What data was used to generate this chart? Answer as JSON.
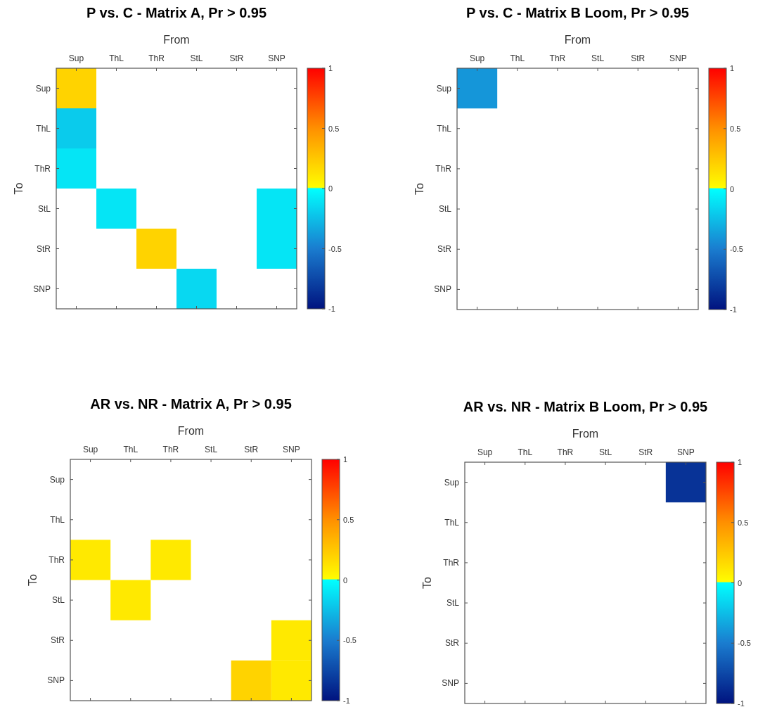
{
  "chart_data": [
    {
      "type": "heatmap",
      "title": "P vs. C - Matrix A, Pr > 0.95",
      "xlabel": "From",
      "ylabel": "To",
      "categories": [
        "Sup",
        "ThL",
        "ThR",
        "StL",
        "StR",
        "SNP"
      ],
      "y_categories": [
        "Sup",
        "ThL",
        "ThR",
        "StL",
        "StR",
        "SNP"
      ],
      "cells": [
        [
          0.2,
          null,
          null,
          null,
          null,
          null
        ],
        [
          -0.2,
          null,
          null,
          null,
          null,
          null
        ],
        [
          -0.1,
          null,
          null,
          null,
          null,
          null
        ],
        [
          null,
          -0.1,
          null,
          null,
          null,
          -0.1
        ],
        [
          null,
          null,
          0.2,
          null,
          null,
          -0.1
        ],
        [
          null,
          null,
          null,
          -0.15,
          null,
          null
        ]
      ],
      "clim": [
        -1,
        1
      ],
      "cticks": [
        -1,
        -0.5,
        0,
        0.5,
        1
      ]
    },
    {
      "type": "heatmap",
      "title": "P vs. C - Matrix B Loom, Pr > 0.95",
      "xlabel": "From",
      "ylabel": "To",
      "categories": [
        "Sup",
        "ThL",
        "ThR",
        "StL",
        "StR",
        "SNP"
      ],
      "y_categories": [
        "Sup",
        "ThL",
        "ThR",
        "StL",
        "StR",
        "SNP"
      ],
      "cells": [
        [
          -0.4,
          null,
          null,
          null,
          null,
          null
        ],
        [
          null,
          null,
          null,
          null,
          null,
          null
        ],
        [
          null,
          null,
          null,
          null,
          null,
          null
        ],
        [
          null,
          null,
          null,
          null,
          null,
          null
        ],
        [
          null,
          null,
          null,
          null,
          null,
          null
        ],
        [
          null,
          null,
          null,
          null,
          null,
          null
        ]
      ],
      "clim": [
        -1,
        1
      ],
      "cticks": [
        -1,
        -0.5,
        0,
        0.5,
        1
      ]
    },
    {
      "type": "heatmap",
      "title": "AR vs. NR - Matrix A, Pr > 0.95",
      "xlabel": "From",
      "ylabel": "To",
      "categories": [
        "Sup",
        "ThL",
        "ThR",
        "StL",
        "StR",
        "SNP"
      ],
      "y_categories": [
        "Sup",
        "ThL",
        "ThR",
        "StL",
        "StR",
        "SNP"
      ],
      "cells": [
        [
          null,
          null,
          null,
          null,
          null,
          null
        ],
        [
          null,
          null,
          null,
          null,
          null,
          null
        ],
        [
          0.1,
          null,
          0.1,
          null,
          null,
          null
        ],
        [
          null,
          0.1,
          null,
          null,
          null,
          null
        ],
        [
          null,
          null,
          null,
          null,
          null,
          0.1
        ],
        [
          null,
          null,
          null,
          null,
          0.2,
          0.1
        ]
      ],
      "clim": [
        -1,
        1
      ],
      "cticks": [
        -1,
        -0.5,
        0,
        0.5,
        1
      ]
    },
    {
      "type": "heatmap",
      "title": "AR vs. NR - Matrix B Loom, Pr > 0.95",
      "xlabel": "From",
      "ylabel": "To",
      "categories": [
        "Sup",
        "ThL",
        "ThR",
        "StL",
        "StR",
        "SNP"
      ],
      "y_categories": [
        "Sup",
        "ThL",
        "ThR",
        "StL",
        "StR",
        "SNP"
      ],
      "cells": [
        [
          null,
          null,
          null,
          null,
          null,
          -0.85
        ],
        [
          null,
          null,
          null,
          null,
          null,
          null
        ],
        [
          null,
          null,
          null,
          null,
          null,
          null
        ],
        [
          null,
          null,
          null,
          null,
          null,
          null
        ],
        [
          null,
          null,
          null,
          null,
          null,
          null
        ],
        [
          null,
          null,
          null,
          null,
          null,
          null
        ]
      ],
      "clim": [
        -1,
        1
      ],
      "cticks": [
        -1,
        -0.5,
        0,
        0.5,
        1
      ]
    }
  ]
}
